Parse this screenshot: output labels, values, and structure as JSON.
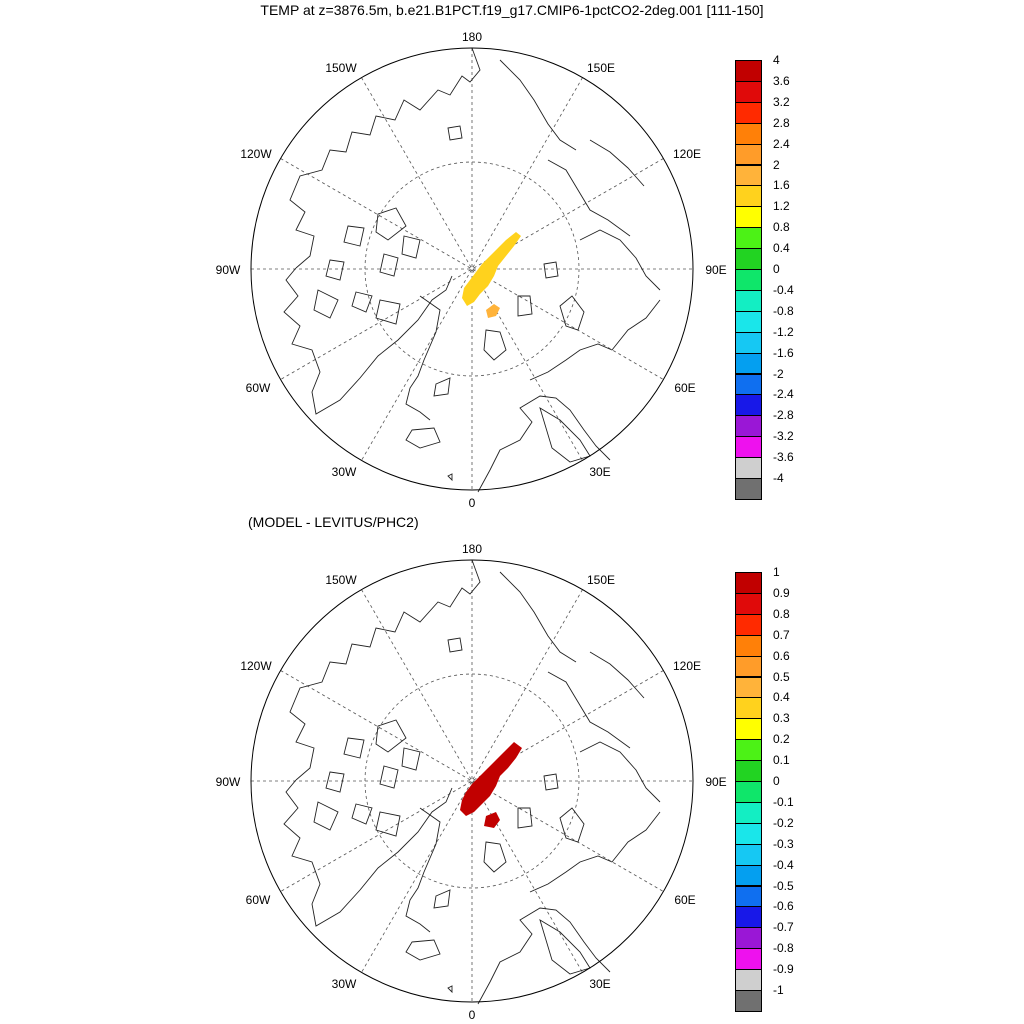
{
  "title": "TEMP at z=3876.5m, b.e21.B1PCT.f19_g17.CMIP6-1pctCO2-2deg.001 [111-150]",
  "subtitle": "(MODEL - LEVITUS/PHC2)",
  "lon_labels": [
    "180",
    "150E",
    "120E",
    "90E",
    "60E",
    "30E",
    "0",
    "30W",
    "60W",
    "90W",
    "120W",
    "150W"
  ],
  "colors": [
    "#707070",
    "#cfcfcf",
    "#ee11ee",
    "#9a17d6",
    "#1818e8",
    "#0f6ff0",
    "#049ff0",
    "#16c8f3",
    "#1ae6ea",
    "#13eec3",
    "#0fe66a",
    "#22d322",
    "#4cf216",
    "#ffff00",
    "#ffd21d",
    "#ffb33a",
    "#ff9c29",
    "#ff8008",
    "#ff2a00",
    "#e00a0a",
    "#c10000"
  ],
  "top_map": {
    "levels": [
      "-4",
      "-3.6",
      "-3.2",
      "-2.8",
      "-2.4",
      "-2",
      "-1.6",
      "-1.2",
      "-0.8",
      "-0.4",
      "0",
      "0.4",
      "0.8",
      "1.2",
      "1.6",
      "2",
      "2.4",
      "2.8",
      "3.2",
      "3.6",
      "4"
    ],
    "main_anomaly_color": "#ffd21d",
    "small_anomaly_color": "#ffb33a"
  },
  "bottom_map": {
    "levels": [
      "-1",
      "-0.9",
      "-0.8",
      "-0.7",
      "-0.6",
      "-0.5",
      "-0.4",
      "-0.3",
      "-0.2",
      "-0.1",
      "0",
      "0.1",
      "0.2",
      "0.3",
      "0.4",
      "0.5",
      "0.6",
      "0.7",
      "0.8",
      "0.9",
      "1"
    ],
    "main_anomaly_color": "#c10000",
    "small_anomaly_color": "#c10000"
  }
}
